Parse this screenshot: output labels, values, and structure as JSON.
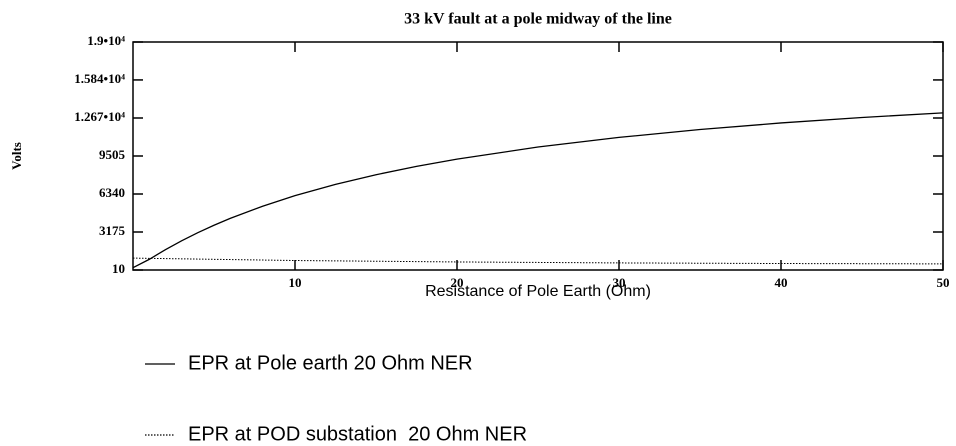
{
  "chart_data": {
    "type": "line",
    "title": "33 kV fault at a pole midway of the line",
    "x_label": "Resistance of Pole Earth (Ohm)",
    "y_label": "Volts",
    "xlim": [
      0,
      50
    ],
    "xticks": [
      10,
      20,
      30,
      40,
      50
    ],
    "ylim": [
      10,
      19000
    ],
    "yticks": [
      10,
      3175,
      6340,
      9505,
      {
        "value": 12670,
        "label": "1.267•10⁴"
      },
      {
        "value": 15840,
        "label": "1.584•10⁴"
      },
      {
        "value": 19000,
        "label": "1.9•10⁴"
      }
    ],
    "series": [
      {
        "name": "EPR at Pole earth 20 Ohm NER",
        "color": "#000000",
        "style": "solid",
        "x": [
          0,
          1,
          2,
          3,
          4,
          5,
          6,
          8,
          10,
          12.5,
          15,
          17.5,
          20,
          25,
          30,
          35,
          40,
          45,
          50
        ],
        "values": [
          200,
          895,
          1706,
          2444,
          3119,
          3738,
          4308,
          5323,
          6200,
          7141,
          7944,
          8639,
          9245,
          10252,
          11054,
          11709,
          12257,
          12713,
          13100
        ]
      },
      {
        "name": "EPR at POD substation  20 Ohm NER",
        "color": "#000000",
        "style": "dotted",
        "x": [
          0,
          5,
          10,
          20,
          30,
          40,
          50
        ],
        "values": [
          1000,
          900,
          800,
          680,
          600,
          550,
          520
        ]
      }
    ]
  }
}
